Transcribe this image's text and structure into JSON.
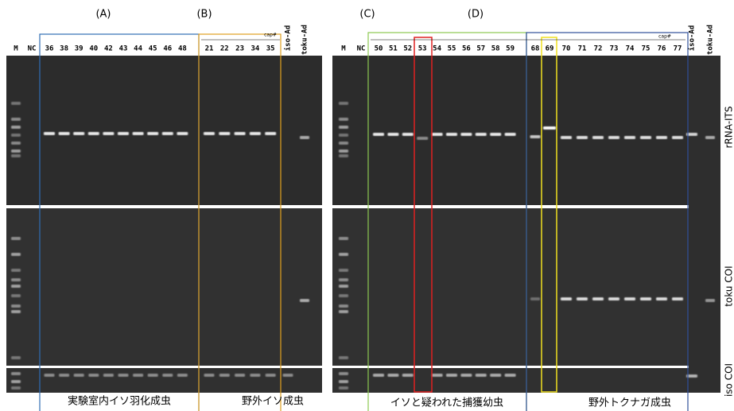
{
  "left": {
    "groups": [
      "(A)",
      "(B)"
    ],
    "cap_label": "cap#",
    "lanes": [
      "M",
      "NC",
      "36",
      "38",
      "39",
      "40",
      "42",
      "43",
      "44",
      "45",
      "46",
      "48",
      "21",
      "22",
      "23",
      "34",
      "35",
      "iso-Ad",
      "toku-Ad"
    ],
    "captions": [
      "実験室内イソ羽化成虫",
      "野外イソ成虫"
    ]
  },
  "right": {
    "groups": [
      "(C)",
      "(D)"
    ],
    "cap_label": "cap#",
    "lanes": [
      "M",
      "NC",
      "50",
      "51",
      "52",
      "53",
      "54",
      "55",
      "56",
      "57",
      "58",
      "59",
      "68",
      "69",
      "70",
      "71",
      "72",
      "73",
      "74",
      "75",
      "76",
      "77",
      "iso-Ad",
      "toku-Ad"
    ],
    "captions": [
      "イソと疑われた捕獲幼虫",
      "野外トクナガ成虫"
    ]
  },
  "row_labels": [
    "rRNA-ITS",
    "toku COI",
    "iso COI"
  ]
}
